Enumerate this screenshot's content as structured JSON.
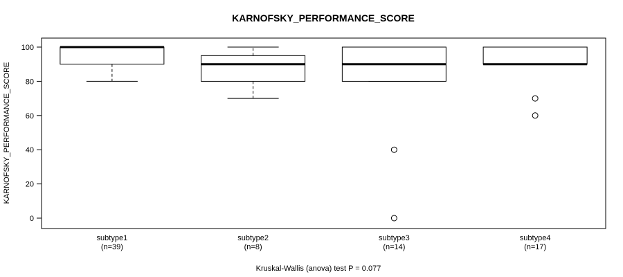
{
  "chart_data": {
    "type": "boxplot",
    "title": "KARNOFSKY_PERFORMANCE_SCORE",
    "ylabel": "KARNOFSKY_PERFORMANCE_SCORE",
    "caption": "Kruskal-Wallis (anova) test P = 0.077",
    "ylim": [
      0,
      100
    ],
    "yticks": [
      0,
      20,
      40,
      60,
      80,
      100
    ],
    "grid": false,
    "colors": {
      "stroke": "#000000",
      "background": "#ffffff"
    },
    "groups": [
      {
        "label": "subtype1",
        "sublabel": "(n=39)",
        "n": 39,
        "q1": 90,
        "median": 100,
        "q3": 100,
        "whisker_low": 80,
        "whisker_high": 100,
        "outliers": []
      },
      {
        "label": "subtype2",
        "sublabel": "(n=8)",
        "n": 8,
        "q1": 80,
        "median": 90,
        "q3": 95,
        "whisker_low": 70,
        "whisker_high": 100,
        "outliers": []
      },
      {
        "label": "subtype3",
        "sublabel": "(n=14)",
        "n": 14,
        "q1": 80,
        "median": 90,
        "q3": 100,
        "whisker_low": 80,
        "whisker_high": 100,
        "outliers": [
          40,
          0
        ]
      },
      {
        "label": "subtype4",
        "sublabel": "(n=17)",
        "n": 17,
        "q1": 90,
        "median": 90,
        "q3": 100,
        "whisker_low": 90,
        "whisker_high": 100,
        "outliers": [
          70,
          60
        ]
      }
    ]
  }
}
